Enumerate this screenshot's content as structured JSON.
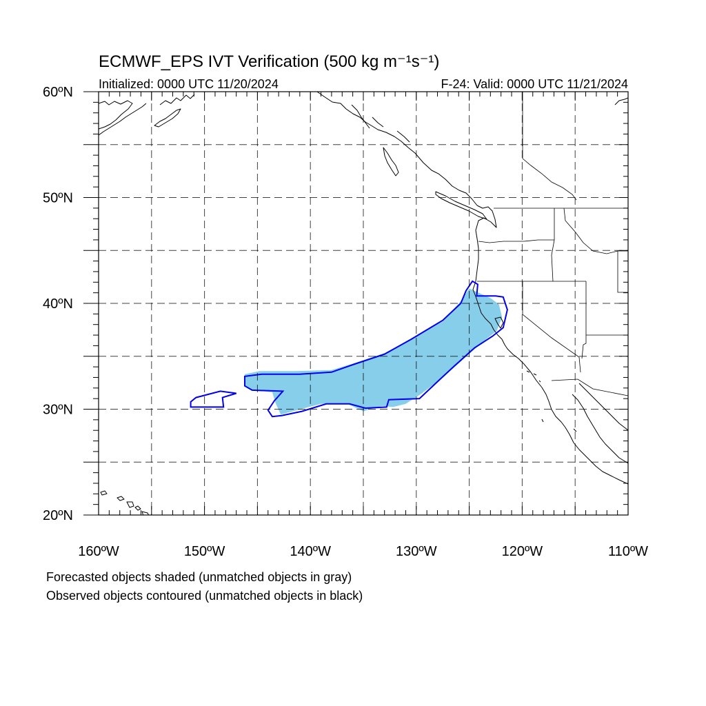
{
  "title": "ECMWF_EPS IVT Verification (500 kg m⁻¹s⁻¹)",
  "initialized": "Initialized: 0000 UTC 11/20/2024",
  "valid": "F-24: Valid: 0000 UTC 11/21/2024",
  "legend": [
    "Forecasted objects shaded (unmatched objects in gray)",
    "Observed objects contoured (unmatched objects in black)"
  ],
  "map": {
    "lon_range": [
      -160,
      -110
    ],
    "lat_range": [
      20,
      60
    ],
    "lon_ticks": [
      {
        "value": -160,
        "label": "160ºW"
      },
      {
        "value": -150,
        "label": "150ºW"
      },
      {
        "value": -140,
        "label": "140ºW"
      },
      {
        "value": -130,
        "label": "130ºW"
      },
      {
        "value": -120,
        "label": "120ºW"
      },
      {
        "value": -110,
        "label": "110ºW"
      }
    ],
    "lat_ticks": [
      {
        "value": 60,
        "label": "60ºN"
      },
      {
        "value": 50,
        "label": "50ºN"
      },
      {
        "value": 40,
        "label": "40ºN"
      },
      {
        "value": 30,
        "label": "30ºN"
      },
      {
        "value": 20,
        "label": "20ºN"
      }
    ],
    "gridlines_lon": [
      -155,
      -150,
      -145,
      -140,
      -135,
      -130,
      -125,
      -120,
      -115
    ],
    "gridlines_lat": [
      25,
      30,
      35,
      40,
      45,
      50,
      55
    ],
    "colors": {
      "forecast_fill": "#87ceeb",
      "observed_contour": "#0000ee",
      "coastline": "#000000"
    }
  },
  "chart_data": {
    "type": "map",
    "objects": [
      {
        "kind": "forecast-shaded",
        "matched": true,
        "polygon_lonlat": [
          [
            -146.2,
            33.3
          ],
          [
            -144.8,
            33.6
          ],
          [
            -141.5,
            33.6
          ],
          [
            -138,
            33.7
          ],
          [
            -136,
            34.3
          ],
          [
            -133,
            35.3
          ],
          [
            -130.5,
            36.6
          ],
          [
            -127.5,
            38.3
          ],
          [
            -125.8,
            40.2
          ],
          [
            -125,
            41.4
          ],
          [
            -123,
            40.5
          ],
          [
            -122.2,
            39.9
          ],
          [
            -121.9,
            38.7
          ],
          [
            -122.4,
            37.4
          ],
          [
            -123.8,
            36.3
          ],
          [
            -125.8,
            34.5
          ],
          [
            -127.5,
            33
          ],
          [
            -129.6,
            31.4
          ],
          [
            -131,
            30.5
          ],
          [
            -132.2,
            30.2
          ],
          [
            -133.2,
            30.3
          ],
          [
            -134.4,
            30
          ],
          [
            -135,
            29.8
          ],
          [
            -136.5,
            30.5
          ],
          [
            -139,
            30.5
          ],
          [
            -141.3,
            29.9
          ],
          [
            -142.8,
            29.5
          ],
          [
            -143.3,
            30.6
          ],
          [
            -143.6,
            31.6
          ],
          [
            -145.5,
            31.8
          ],
          [
            -146.2,
            32.2
          ]
        ]
      },
      {
        "kind": "observed-contour",
        "matched": true,
        "polygon_lonlat": [
          [
            -146.2,
            33.1
          ],
          [
            -144.6,
            33.3
          ],
          [
            -141,
            33.3
          ],
          [
            -138,
            33.5
          ],
          [
            -136,
            34.2
          ],
          [
            -133,
            35.2
          ],
          [
            -130.5,
            36.6
          ],
          [
            -127.5,
            38.4
          ],
          [
            -125.8,
            40
          ],
          [
            -125.3,
            41.2
          ],
          [
            -124.7,
            42.1
          ],
          [
            -124.2,
            41.8
          ],
          [
            -124.3,
            40.7
          ],
          [
            -122.5,
            40.7
          ],
          [
            -121.8,
            40.6
          ],
          [
            -121.4,
            39.4
          ],
          [
            -121.8,
            37.7
          ],
          [
            -122.8,
            36.9
          ],
          [
            -124.5,
            35.8
          ],
          [
            -126.5,
            34
          ],
          [
            -128,
            32.6
          ],
          [
            -129.7,
            31
          ],
          [
            -132.6,
            30.9
          ],
          [
            -132.8,
            30.2
          ],
          [
            -134.8,
            30.1
          ],
          [
            -136.3,
            30.5
          ],
          [
            -138.5,
            30.5
          ],
          [
            -140.8,
            29.8
          ],
          [
            -142.7,
            29.4
          ],
          [
            -143.6,
            29.3
          ],
          [
            -144,
            29.9
          ],
          [
            -143.4,
            30.8
          ],
          [
            -142.6,
            31.7
          ],
          [
            -145.5,
            31.8
          ],
          [
            -146.2,
            32.2
          ]
        ]
      },
      {
        "kind": "observed-contour",
        "matched": true,
        "polygon_lonlat": [
          [
            -151.3,
            30.2
          ],
          [
            -148.2,
            30.2
          ],
          [
            -148.3,
            31.1
          ],
          [
            -147,
            31.5
          ],
          [
            -148.5,
            31.7
          ],
          [
            -150.8,
            31.1
          ],
          [
            -151.3,
            30.7
          ]
        ]
      }
    ]
  }
}
